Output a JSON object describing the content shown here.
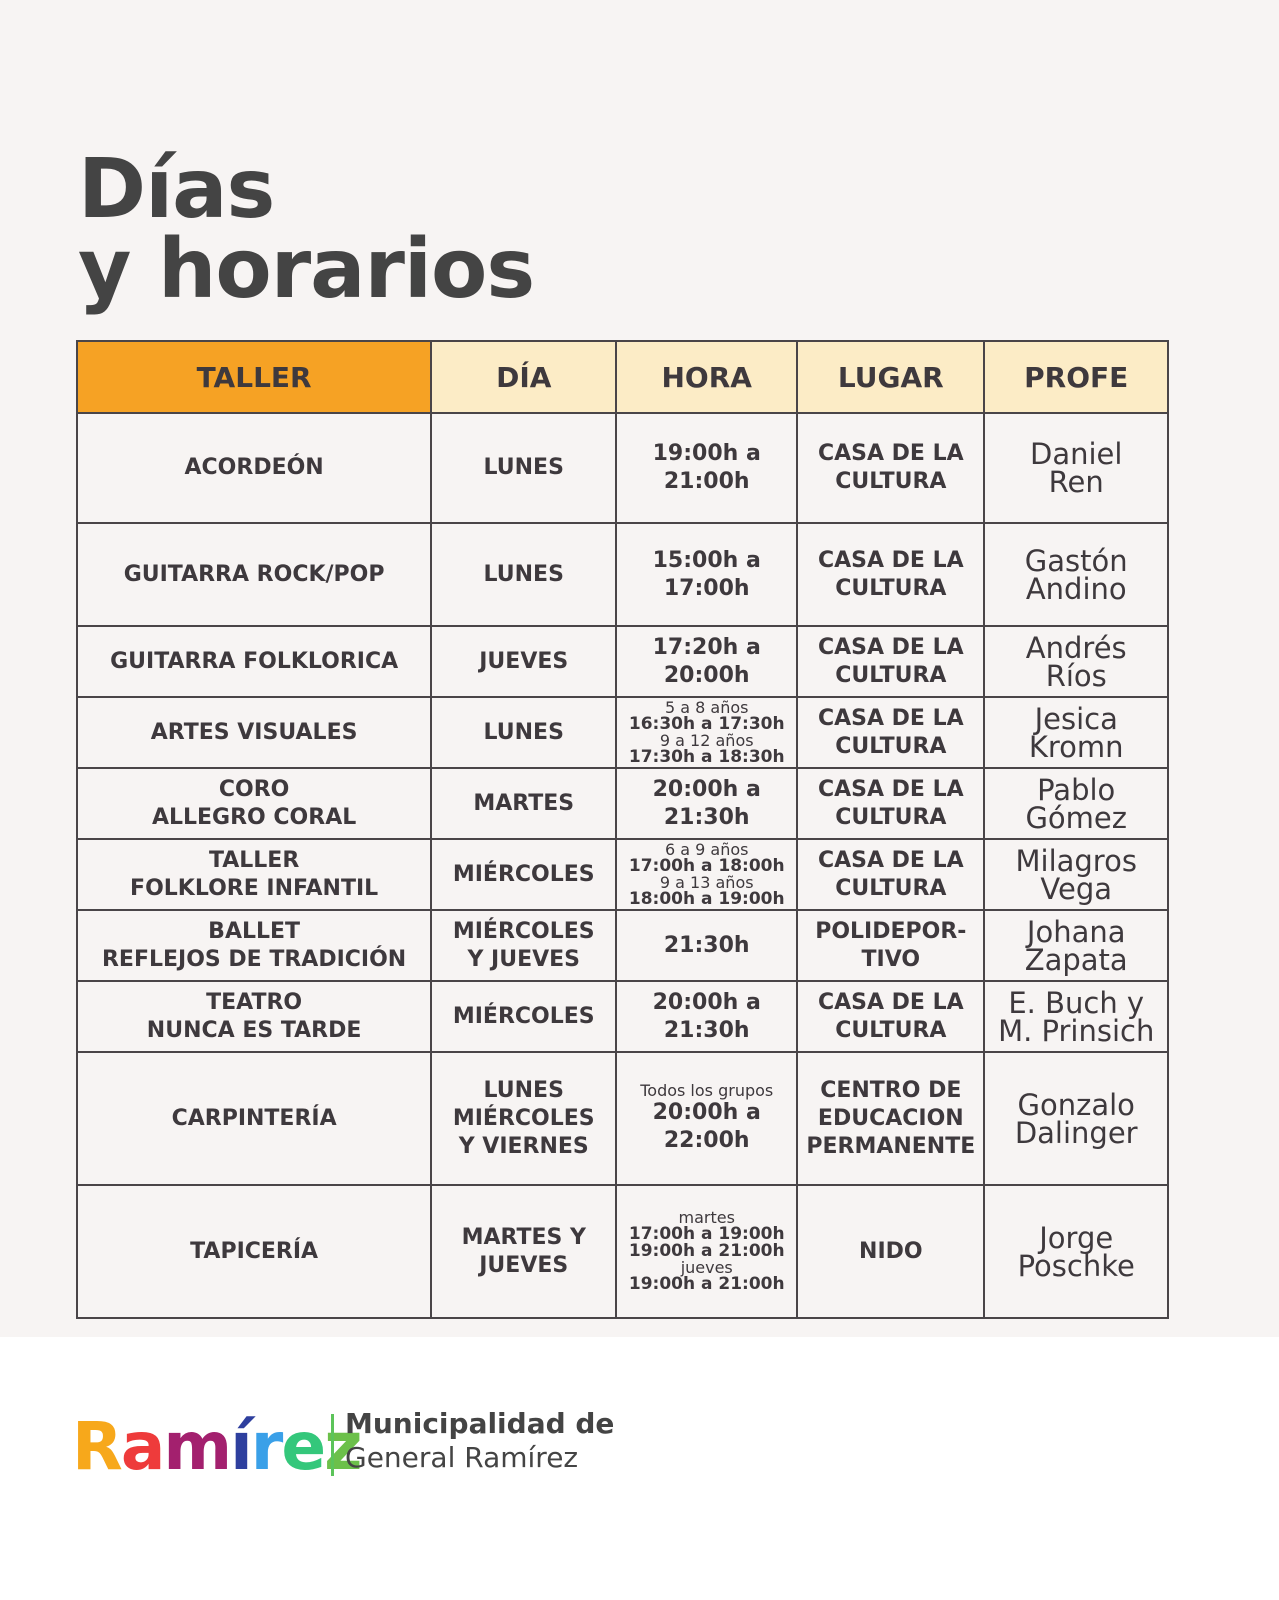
{
  "title": {
    "line1": "Días",
    "line2": "y horarios"
  },
  "table": {
    "headers": [
      "TALLER",
      "DÍA",
      "HORA",
      "LUGAR",
      "PROFE"
    ],
    "rows": [
      {
        "taller": "ACORDEÓN",
        "dia": "LUNES",
        "hora": [
          {
            "t": "19:00h a\n21:00h",
            "s": "b"
          }
        ],
        "lugar": "CASA DE LA\nCULTURA",
        "profe": "Daniel\nRen"
      },
      {
        "taller": "GUITARRA ROCK/POP",
        "dia": "LUNES",
        "hora": [
          {
            "t": "15:00h a\n17:00h",
            "s": "b"
          }
        ],
        "lugar": "CASA DE LA\nCULTURA",
        "profe": "Gastón\nAndino"
      },
      {
        "taller": "GUITARRA FOLKLORICA",
        "dia": "JUEVES",
        "hora": [
          {
            "t": "17:20h a\n20:00h",
            "s": "b"
          }
        ],
        "lugar": "CASA DE LA\nCULTURA",
        "profe": "Andrés\nRíos"
      },
      {
        "taller": "ARTES VISUALES",
        "dia": "LUNES",
        "hora": [
          {
            "t": "5 a 8 años",
            "s": "small"
          },
          {
            "t": "16:30h a 17:30h",
            "s": "sb"
          },
          {
            "t": "9 a 12 años",
            "s": "small"
          },
          {
            "t": "17:30h a 18:30h",
            "s": "sb"
          }
        ],
        "lugar": "CASA DE LA\nCULTURA",
        "profe": "Jesica\nKromn"
      },
      {
        "taller": "CORO\nALLEGRO CORAL",
        "dia": "MARTES",
        "hora": [
          {
            "t": "20:00h a\n21:30h",
            "s": "b"
          }
        ],
        "lugar": "CASA DE LA\nCULTURA",
        "profe": "Pablo\nGómez"
      },
      {
        "taller": "TALLER\nFOLKLORE INFANTIL",
        "dia": "MIÉRCOLES",
        "hora": [
          {
            "t": "6 a 9 años",
            "s": "small"
          },
          {
            "t": "17:00h a 18:00h",
            "s": "sb"
          },
          {
            "t": "9 a 13 años",
            "s": "small"
          },
          {
            "t": "18:00h a 19:00h",
            "s": "sb"
          }
        ],
        "lugar": "CASA DE LA\nCULTURA",
        "profe": "Milagros\nVega"
      },
      {
        "taller": "BALLET\nREFLEJOS DE TRADICIÓN",
        "dia": "MIÉRCOLES\nY JUEVES",
        "hora": [
          {
            "t": "21:30h",
            "s": "b"
          }
        ],
        "lugar": "POLIDEPOR-\nTIVO",
        "profe": "Johana\nZapata"
      },
      {
        "taller": "TEATRO\nNUNCA ES TARDE",
        "dia": "MIÉRCOLES",
        "hora": [
          {
            "t": "20:00h a\n21:30h",
            "s": "b"
          }
        ],
        "lugar": "CASA DE LA\nCULTURA",
        "profe": "E. Buch y\nM. Prinsich"
      },
      {
        "taller": "CARPINTERÍA",
        "dia": "LUNES\nMIÉRCOLES\nY VIERNES",
        "hora": [
          {
            "t": "Todos los grupos",
            "s": "small"
          },
          {
            "t": "20:00h a\n22:00h",
            "s": "b"
          }
        ],
        "lugar": "CENTRO DE\nEDUCACION\nPERMANENTE",
        "profe": "Gonzalo\nDalinger"
      },
      {
        "taller": "TAPICERÍA",
        "dia": "MARTES Y\nJUEVES",
        "hora": [
          {
            "t": "martes",
            "s": "small"
          },
          {
            "t": "17:00h a 19:00h",
            "s": "sb"
          },
          {
            "t": "19:00h a 21:00h",
            "s": "sb"
          },
          {
            "t": "jueves",
            "s": "small"
          },
          {
            "t": "19:00h a 21:00h",
            "s": "sb"
          }
        ],
        "lugar": "NIDO",
        "profe": "Jorge\nPoschke"
      }
    ]
  },
  "footer": {
    "logo_text": "Ramírez",
    "logo_colors": [
      "#f7a81b",
      "#ee3b3b",
      "#a3206e",
      "#2e3f9e",
      "#3aa0e8",
      "#34c77b",
      "#6cc04a"
    ],
    "muni_line1": "Municipalidad de",
    "muni_line2": "General Ramírez"
  },
  "colors": {
    "header_accent": "#f6a224",
    "header": "#fcecc6",
    "text": "#3e393d"
  }
}
